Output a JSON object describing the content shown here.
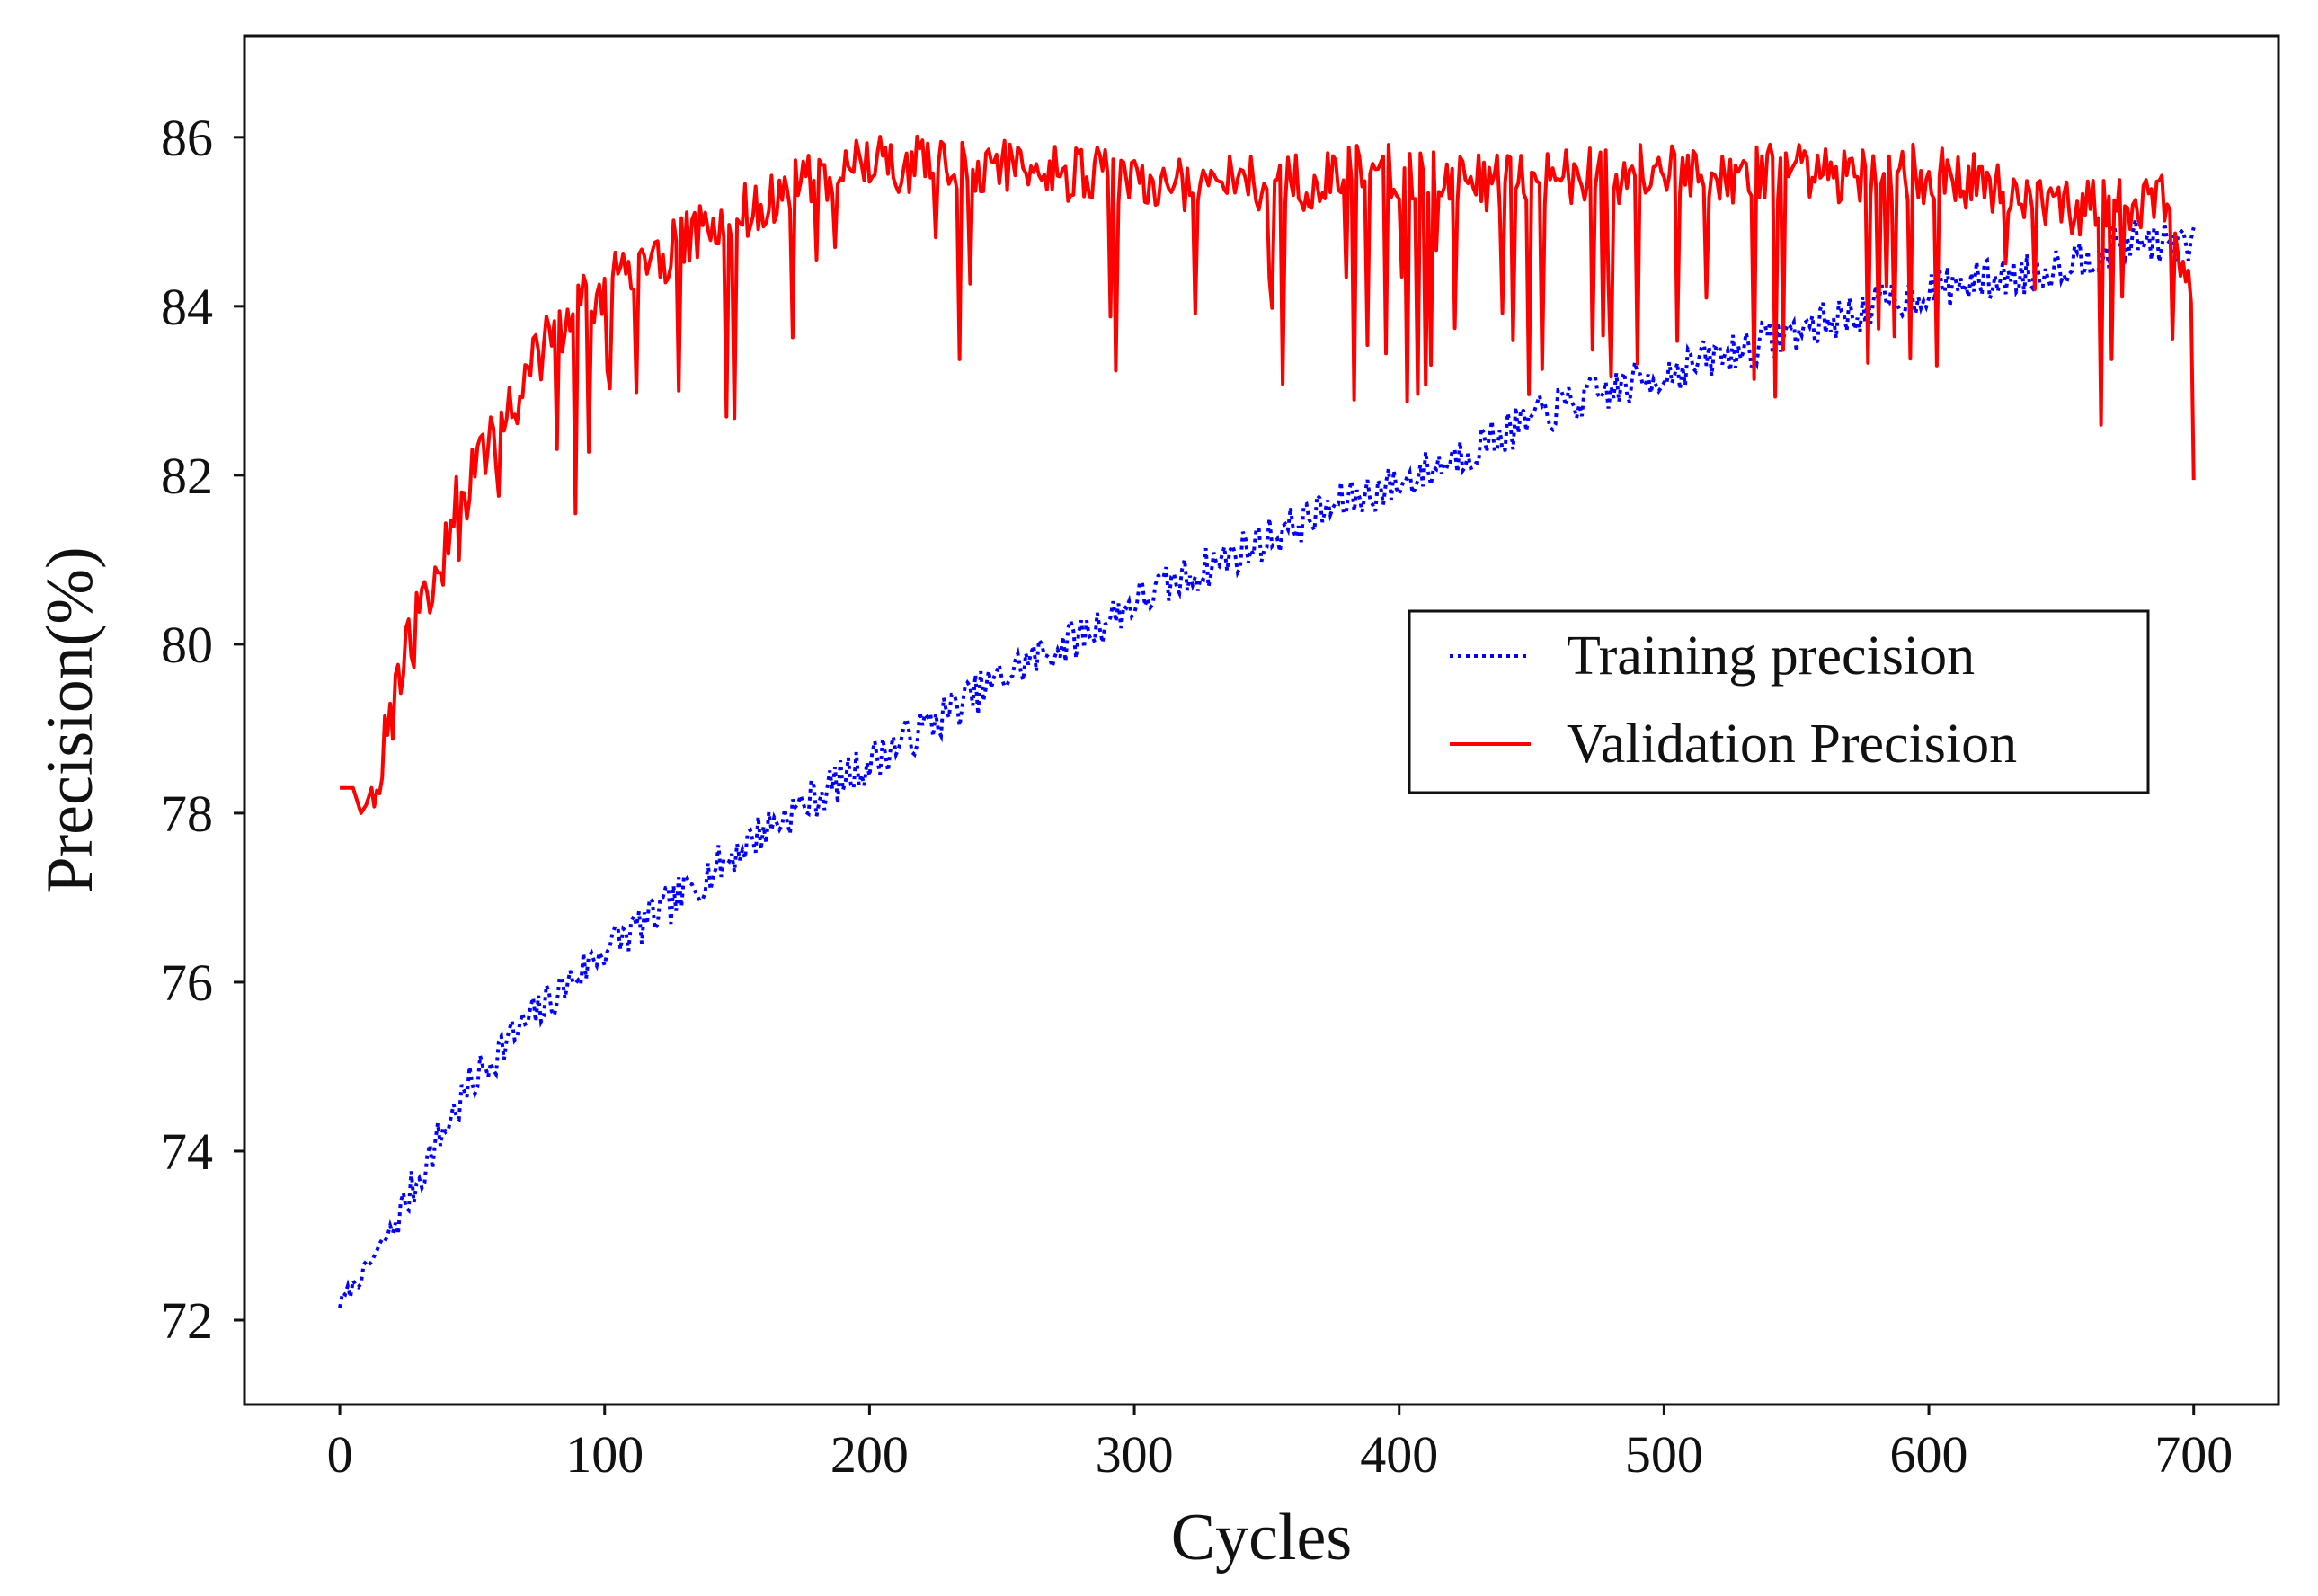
{
  "chart_data": {
    "type": "line",
    "title": "",
    "xlabel": "Cycles",
    "ylabel": "Precision(%)",
    "xlim": [
      -36,
      732
    ],
    "ylim": [
      71.0,
      87.2
    ],
    "xticks": [
      0,
      100,
      200,
      300,
      400,
      500,
      600,
      700
    ],
    "yticks": [
      72,
      74,
      76,
      78,
      80,
      82,
      84,
      86
    ],
    "xtick_labels": [
      "0",
      "100",
      "200",
      "300",
      "400",
      "500",
      "600",
      "700"
    ],
    "ytick_labels": [
      "72",
      "74",
      "76",
      "78",
      "80",
      "82",
      "84",
      "86"
    ],
    "grid": false,
    "legend_position": "center-right",
    "series": [
      {
        "name": "Training precision",
        "color": "#0000ff",
        "style": "dotted",
        "x": [
          0,
          10,
          20,
          30,
          40,
          50,
          60,
          70,
          80,
          90,
          100,
          120,
          140,
          160,
          180,
          200,
          220,
          240,
          260,
          280,
          300,
          320,
          340,
          360,
          380,
          400,
          420,
          440,
          460,
          480,
          500,
          520,
          540,
          560,
          580,
          600,
          620,
          640,
          660,
          680,
          700
        ],
        "values": [
          72.2,
          72.6,
          73.1,
          73.7,
          74.3,
          74.8,
          75.2,
          75.5,
          75.8,
          76.1,
          76.4,
          76.8,
          77.3,
          77.8,
          78.2,
          78.6,
          79.0,
          79.4,
          79.8,
          80.1,
          80.5,
          80.8,
          81.1,
          81.4,
          81.7,
          81.9,
          82.2,
          82.5,
          82.8,
          83.0,
          83.2,
          83.4,
          83.6,
          83.8,
          84.0,
          84.2,
          84.3,
          84.4,
          84.6,
          84.8,
          84.7
        ],
        "variation": 0.25
      },
      {
        "name": "Validation Precision",
        "color": "#ff0000",
        "style": "solid",
        "x": [
          0,
          5,
          8,
          10,
          15,
          20,
          25,
          30,
          35,
          40,
          45,
          50,
          55,
          60,
          70,
          80,
          90,
          100,
          110,
          120,
          130,
          140,
          150,
          160,
          170,
          180,
          190,
          200,
          220,
          240,
          260,
          280,
          300,
          320,
          340,
          360,
          380,
          400,
          420,
          440,
          460,
          480,
          500,
          520,
          540,
          560,
          580,
          600,
          620,
          640,
          660,
          680,
          690,
          700
        ],
        "values": [
          78.3,
          78.3,
          78.0,
          78.1,
          78.6,
          79.2,
          80.0,
          80.5,
          80.8,
          81.2,
          81.8,
          82.2,
          82.3,
          82.5,
          83.2,
          83.7,
          84.0,
          84.3,
          84.4,
          84.6,
          84.8,
          85.0,
          85.1,
          85.3,
          85.4,
          85.5,
          85.6,
          85.7,
          85.7,
          85.7,
          85.7,
          85.6,
          85.5,
          85.5,
          85.5,
          85.5,
          85.6,
          85.6,
          85.5,
          85.5,
          85.6,
          85.6,
          85.6,
          85.6,
          85.6,
          85.6,
          85.6,
          85.6,
          85.5,
          85.3,
          85.2,
          85.2,
          85.3,
          84.1
        ],
        "variation": 1.6
      }
    ]
  }
}
